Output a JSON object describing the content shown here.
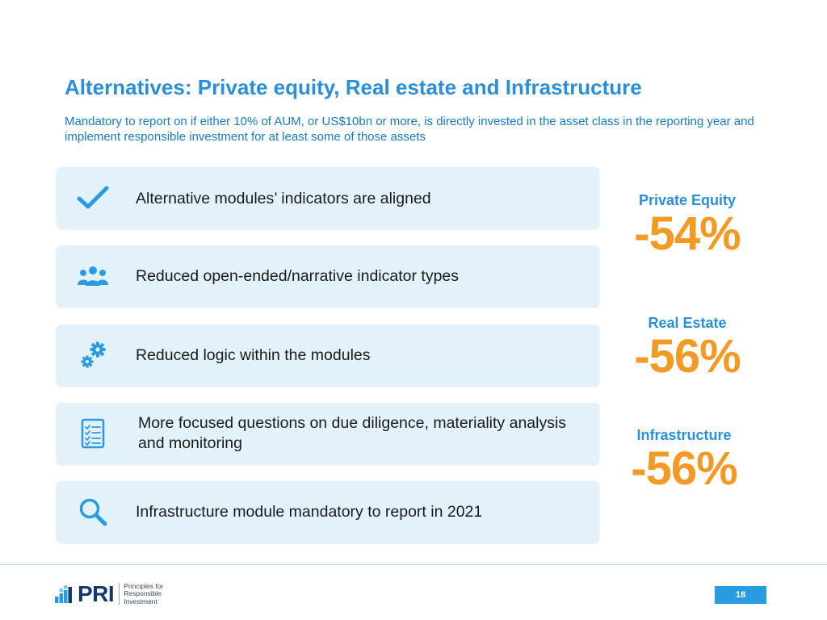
{
  "header": {
    "title": "Alternatives: Private equity, Real estate and Infrastructure",
    "subtitle": "Mandatory to report on if either 10% of AUM, or US$10bn or more, is directly invested in the asset class in the reporting year and implement responsible investment for at least some of those assets"
  },
  "cards": [
    {
      "icon": "check-icon",
      "label": "Alternative modules’ indicators are aligned"
    },
    {
      "icon": "people-group-icon",
      "label": "Reduced open-ended/narrative indicator types"
    },
    {
      "icon": "gears-icon",
      "label": "Reduced logic within the modules"
    },
    {
      "icon": "checklist-icon",
      "label": "More focused questions on due diligence, materiality analysis and monitoring"
    },
    {
      "icon": "magnifier-icon",
      "label": "Infrastructure module mandatory to report in 2021"
    }
  ],
  "stats": [
    {
      "name": "Private Equity",
      "value": "-54%"
    },
    {
      "name": "Real Estate",
      "value": "-56%"
    },
    {
      "name": "Infrastructure",
      "value": "-56%"
    }
  ],
  "footer": {
    "logo_word": "PRI",
    "logo_tagline": [
      "Principles for",
      "Responsible",
      "Investment"
    ],
    "page_number": "18"
  },
  "colors": {
    "title_blue": "#2a8fd6",
    "accent_orange": "#f29a25",
    "card_bg": "#e3f1fb",
    "icon_blue": "#2a9be0",
    "logo_navy": "#123a6b"
  }
}
